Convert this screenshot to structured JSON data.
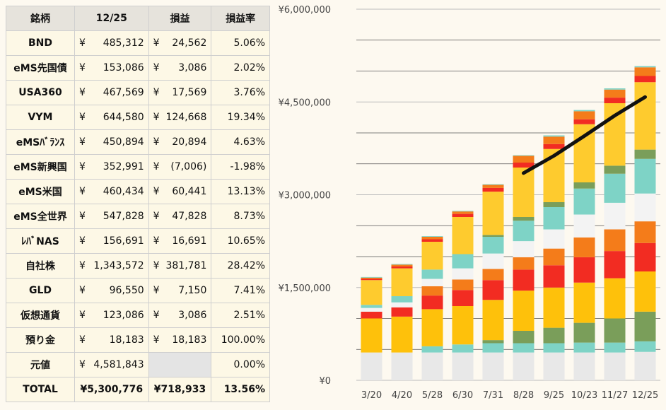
{
  "table": {
    "headers": [
      "銘柄",
      "12/25",
      "損益",
      "損益率"
    ],
    "currency": "¥",
    "rows": [
      {
        "name": "BND",
        "value": "485,312",
        "pl": "24,562",
        "rate": "5.06%"
      },
      {
        "name": "eMS先国債",
        "value": "153,086",
        "pl": "3,086",
        "rate": "2.02%"
      },
      {
        "name": "USA360",
        "value": "467,569",
        "pl": "17,569",
        "rate": "3.76%"
      },
      {
        "name": "VYM",
        "value": "644,580",
        "pl": "124,668",
        "rate": "19.34%"
      },
      {
        "name": "eMSﾊﾞﾗﾝｽ",
        "value": "450,894",
        "pl": "20,894",
        "rate": "4.63%"
      },
      {
        "name": "eMS新興国",
        "value": "352,991",
        "pl": "(7,006)",
        "rate": "-1.98%"
      },
      {
        "name": "eMS米国",
        "value": "460,434",
        "pl": "60,441",
        "rate": "13.13%"
      },
      {
        "name": "eMS全世界",
        "value": "547,828",
        "pl": "47,828",
        "rate": "8.73%"
      },
      {
        "name": "ﾚﾊﾞNAS",
        "value": "156,691",
        "pl": "16,691",
        "rate": "10.65%"
      },
      {
        "name": "自社株",
        "value": "1,343,572",
        "pl": "381,781",
        "rate": "28.42%"
      },
      {
        "name": "GLD",
        "value": "96,550",
        "pl": "7,150",
        "rate": "7.41%"
      },
      {
        "name": "仮想通貨",
        "value": "123,086",
        "pl": "3,086",
        "rate": "2.51%"
      },
      {
        "name": "預り金",
        "value": "18,183",
        "pl": "18,183",
        "rate": "100.00%"
      },
      {
        "name": "元値",
        "value": "4,581,843",
        "pl": "",
        "rate": "0.00%"
      }
    ],
    "total": {
      "name": "TOTAL",
      "value": "¥5,300,776",
      "pl": "¥718,933",
      "rate": "13.56%"
    }
  },
  "chart_data": {
    "type": "bar",
    "stacked": true,
    "categories": [
      "3/20",
      "4/20",
      "5/28",
      "6/30",
      "7/31",
      "8/28",
      "9/25",
      "10/23",
      "11/27",
      "12/25"
    ],
    "y_ticks": [
      "¥0",
      "¥1,500,000",
      "¥3,000,000",
      "¥4,500,000",
      "¥6,000,000"
    ],
    "ylim": [
      0,
      6000000
    ],
    "grid": true,
    "series": [
      {
        "color": "#e8e8e8",
        "values": [
          450000,
          450000,
          450000,
          450000,
          450000,
          450000,
          450000,
          450000,
          450000,
          460000
        ]
      },
      {
        "color": "#7ed3c6",
        "values": [
          0,
          0,
          100000,
          130000,
          150000,
          150000,
          150000,
          160000,
          160000,
          170000
        ]
      },
      {
        "color": "#7a9e5a",
        "values": [
          0,
          0,
          0,
          0,
          50000,
          200000,
          250000,
          320000,
          390000,
          480000
        ]
      },
      {
        "color": "#fec10b",
        "values": [
          550000,
          580000,
          600000,
          620000,
          650000,
          650000,
          650000,
          650000,
          650000,
          650000
        ]
      },
      {
        "color": "#f2f2f2",
        "values": [
          0,
          0,
          0,
          0,
          0,
          0,
          0,
          0,
          0,
          0
        ]
      },
      {
        "color": "#f5ed94",
        "values": [
          0,
          0,
          0,
          0,
          0,
          0,
          0,
          0,
          0,
          0
        ]
      },
      {
        "color": "#f22c22",
        "values": [
          110000,
          150000,
          220000,
          260000,
          320000,
          340000,
          360000,
          410000,
          440000,
          460000
        ]
      },
      {
        "color": "#f47c1a",
        "values": [
          0,
          0,
          150000,
          170000,
          180000,
          200000,
          270000,
          320000,
          350000,
          350000
        ]
      },
      {
        "color": "#f3f3f3",
        "values": [
          60000,
          80000,
          120000,
          180000,
          250000,
          260000,
          310000,
          370000,
          430000,
          450000
        ]
      },
      {
        "color": "#7ed3c6",
        "values": [
          50000,
          100000,
          150000,
          230000,
          270000,
          330000,
          360000,
          420000,
          470000,
          560000
        ]
      },
      {
        "color": "#7a9e5a",
        "values": [
          0,
          0,
          0,
          0,
          30000,
          60000,
          80000,
          100000,
          130000,
          150000
        ]
      },
      {
        "color": "#fecb2e",
        "values": [
          400000,
          450000,
          450000,
          600000,
          700000,
          800000,
          860000,
          940000,
          1010000,
          1090000
        ]
      },
      {
        "color": "#f22c22",
        "values": [
          20000,
          30000,
          40000,
          50000,
          60000,
          80000,
          80000,
          80000,
          90000,
          100000
        ]
      },
      {
        "color": "#f47c1a",
        "values": [
          20000,
          30000,
          40000,
          40000,
          50000,
          110000,
          120000,
          130000,
          130000,
          140000
        ]
      },
      {
        "color": "#7ed3c6",
        "values": [
          10000,
          10000,
          10000,
          10000,
          10000,
          10000,
          20000,
          20000,
          20000,
          20000
        ]
      }
    ],
    "line": {
      "color": "#111111",
      "values": [
        null,
        null,
        null,
        null,
        null,
        3350000,
        3630000,
        3950000,
        4280000,
        4580000
      ]
    }
  }
}
